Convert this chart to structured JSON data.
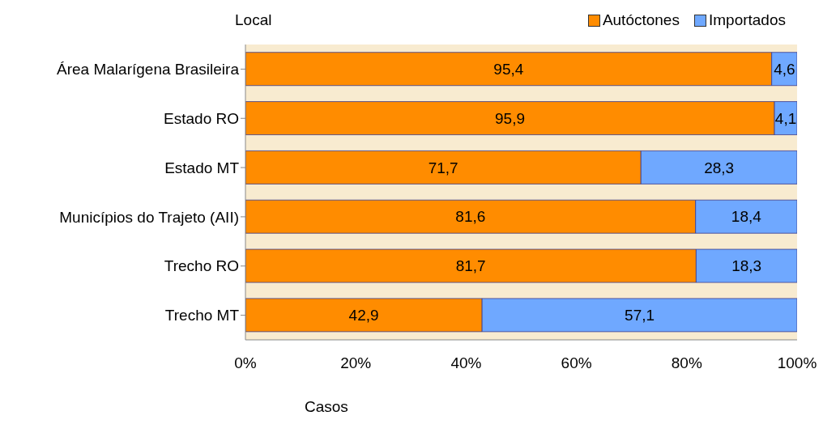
{
  "chart_data": {
    "type": "bar",
    "orientation": "horizontal",
    "stacked": true,
    "ylabel": "Local",
    "xlabel": "Casos",
    "categories": [
      "Área Malarígena Brasileira",
      "Estado RO",
      "Estado MT",
      "Municípios do Trajeto (AII)",
      "Trecho RO",
      "Trecho MT"
    ],
    "series": [
      {
        "name": "Autóctones",
        "color": "#ff8c00",
        "values": [
          95.4,
          95.9,
          71.7,
          81.6,
          81.7,
          42.9
        ],
        "value_labels": [
          "95,4",
          "95,9",
          "71,7",
          "81,6",
          "81,7",
          "42,9"
        ]
      },
      {
        "name": "Importados",
        "color": "#6fa8ff",
        "values": [
          4.6,
          4.1,
          28.3,
          18.4,
          18.3,
          57.1
        ],
        "value_labels": [
          "4,6",
          "4,1",
          "28,3",
          "18,4",
          "18,3",
          "57,1"
        ]
      }
    ],
    "xlim": [
      0,
      100
    ],
    "xticks": [
      {
        "value": 0,
        "label": "0%"
      },
      {
        "value": 20,
        "label": "20%"
      },
      {
        "value": 40,
        "label": "40%"
      },
      {
        "value": 60,
        "label": "60%"
      },
      {
        "value": 80,
        "label": "80%"
      },
      {
        "value": 100,
        "label": "100%"
      }
    ],
    "bands": [
      {
        "axis": "x",
        "from": 0,
        "to": 100,
        "color": "#f8ebd0"
      }
    ],
    "legend": "top right",
    "grid": false
  }
}
